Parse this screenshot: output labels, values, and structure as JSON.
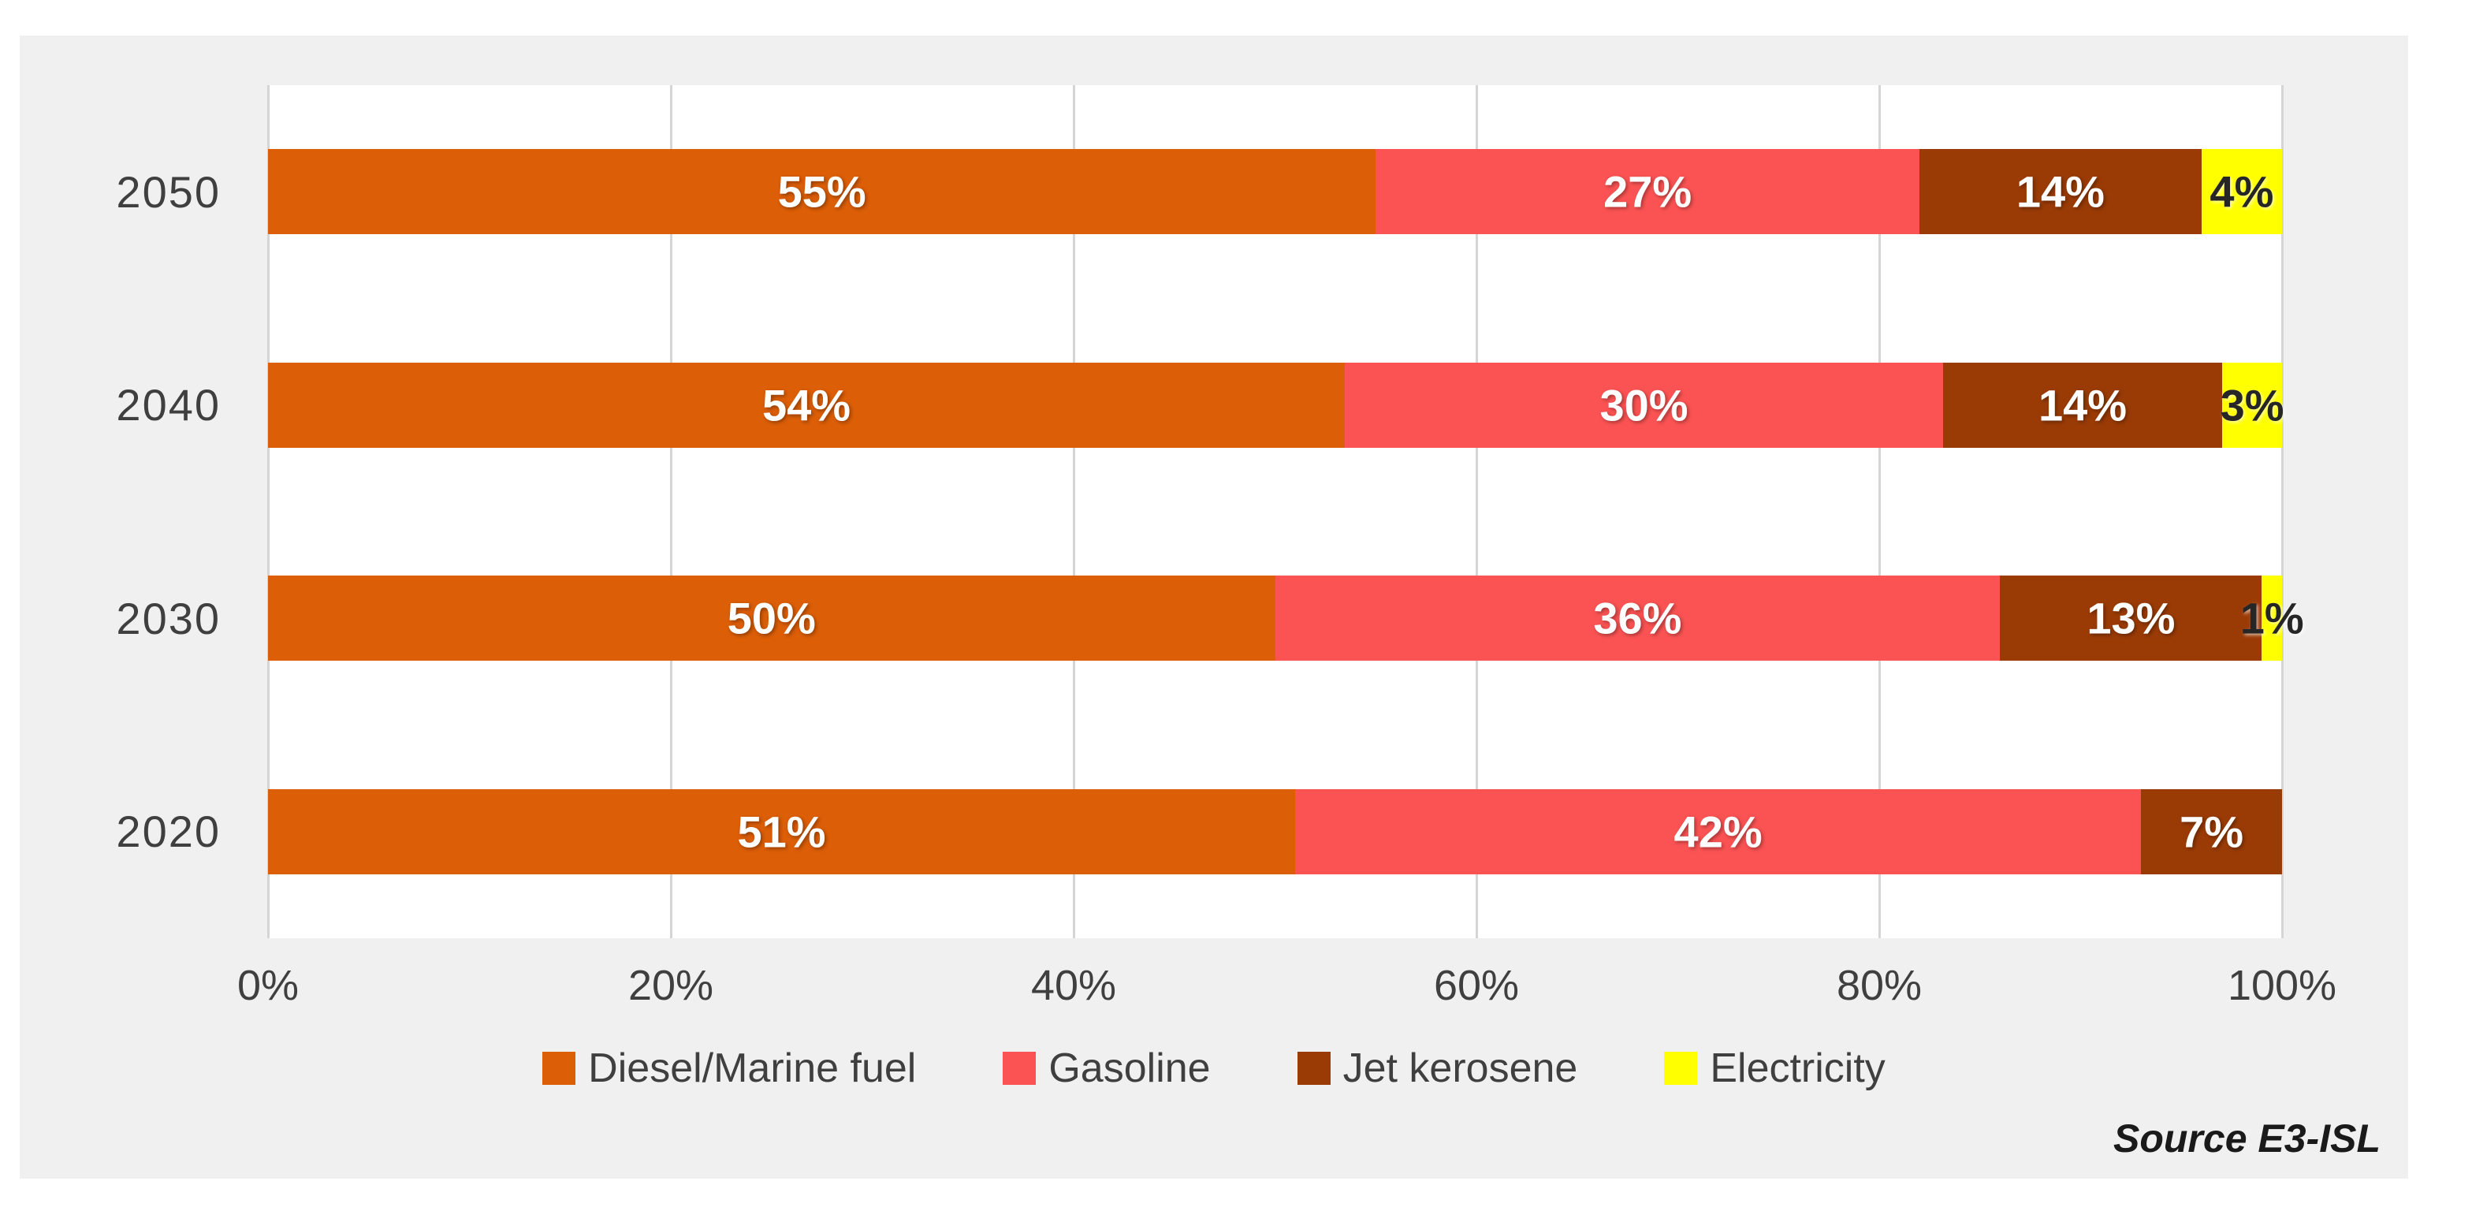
{
  "chart_data": {
    "type": "bar",
    "orientation": "horizontal-stacked",
    "title": "",
    "categories": [
      "2050",
      "2040",
      "2030",
      "2020"
    ],
    "series": [
      {
        "name": "Diesel/Marine fuel",
        "color": "#dc5e07",
        "label_color": "#ffffff",
        "values": [
          55,
          54,
          50,
          51
        ]
      },
      {
        "name": "Gasoline",
        "color": "#fb5353",
        "label_color": "#ffffff",
        "values": [
          27,
          30,
          36,
          42
        ]
      },
      {
        "name": "Jet kerosene",
        "color": "#9a3b06",
        "label_color": "#ffffff",
        "values": [
          14,
          14,
          13,
          7
        ]
      },
      {
        "name": "Electricity",
        "color": "#ffff00",
        "label_color": "#262626",
        "values": [
          4,
          3,
          1,
          0
        ]
      }
    ],
    "value_suffix": "%",
    "x_ticks": [
      "0%",
      "20%",
      "40%",
      "60%",
      "80%",
      "100%"
    ],
    "xlim": [
      0,
      100
    ],
    "grid": "vertical",
    "legend_position": "bottom"
  },
  "source_note": "Source E3-ISL",
  "colors": {
    "panel_background": "#f0f0f0",
    "plot_background": "#ffffff",
    "gridline": "#d5d5d5",
    "axis_text": "#3f3f3f"
  }
}
